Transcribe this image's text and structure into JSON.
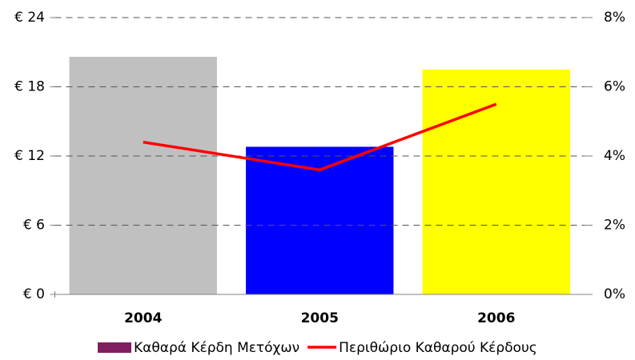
{
  "chart_data": {
    "type": "bar-line",
    "categories": [
      "2004",
      "2005",
      "2006"
    ],
    "series": [
      {
        "name": "Καθαρά Κέρδη Μετόχων",
        "type": "bar",
        "color": "#7f1f5f",
        "colors": [
          "#c0c0c0",
          "#0000ff",
          "#ffff00"
        ],
        "values": [
          20.6,
          12.8,
          19.5
        ]
      },
      {
        "name": "Περιθώριο Καθαρού Κέρδους",
        "type": "line",
        "axis": "y2",
        "color": "#ff0000",
        "values": [
          4.4,
          3.6,
          5.5
        ]
      }
    ],
    "ylim": [
      0,
      24
    ],
    "yticks": [
      {
        "value": 0,
        "label": "€ 0"
      },
      {
        "value": 6,
        "label": "€ 6"
      },
      {
        "value": 12,
        "label": "€ 12"
      },
      {
        "value": 18,
        "label": "€ 18"
      },
      {
        "value": 24,
        "label": "€ 24"
      }
    ],
    "y2lim": [
      0,
      8
    ],
    "y2ticks": [
      {
        "value": 0,
        "label": "0%"
      },
      {
        "value": 2,
        "label": "2%"
      },
      {
        "value": 4,
        "label": "4%"
      },
      {
        "value": 6,
        "label": "6%"
      },
      {
        "value": 8,
        "label": "8%"
      }
    ],
    "grid": true,
    "legend": "bottom"
  }
}
